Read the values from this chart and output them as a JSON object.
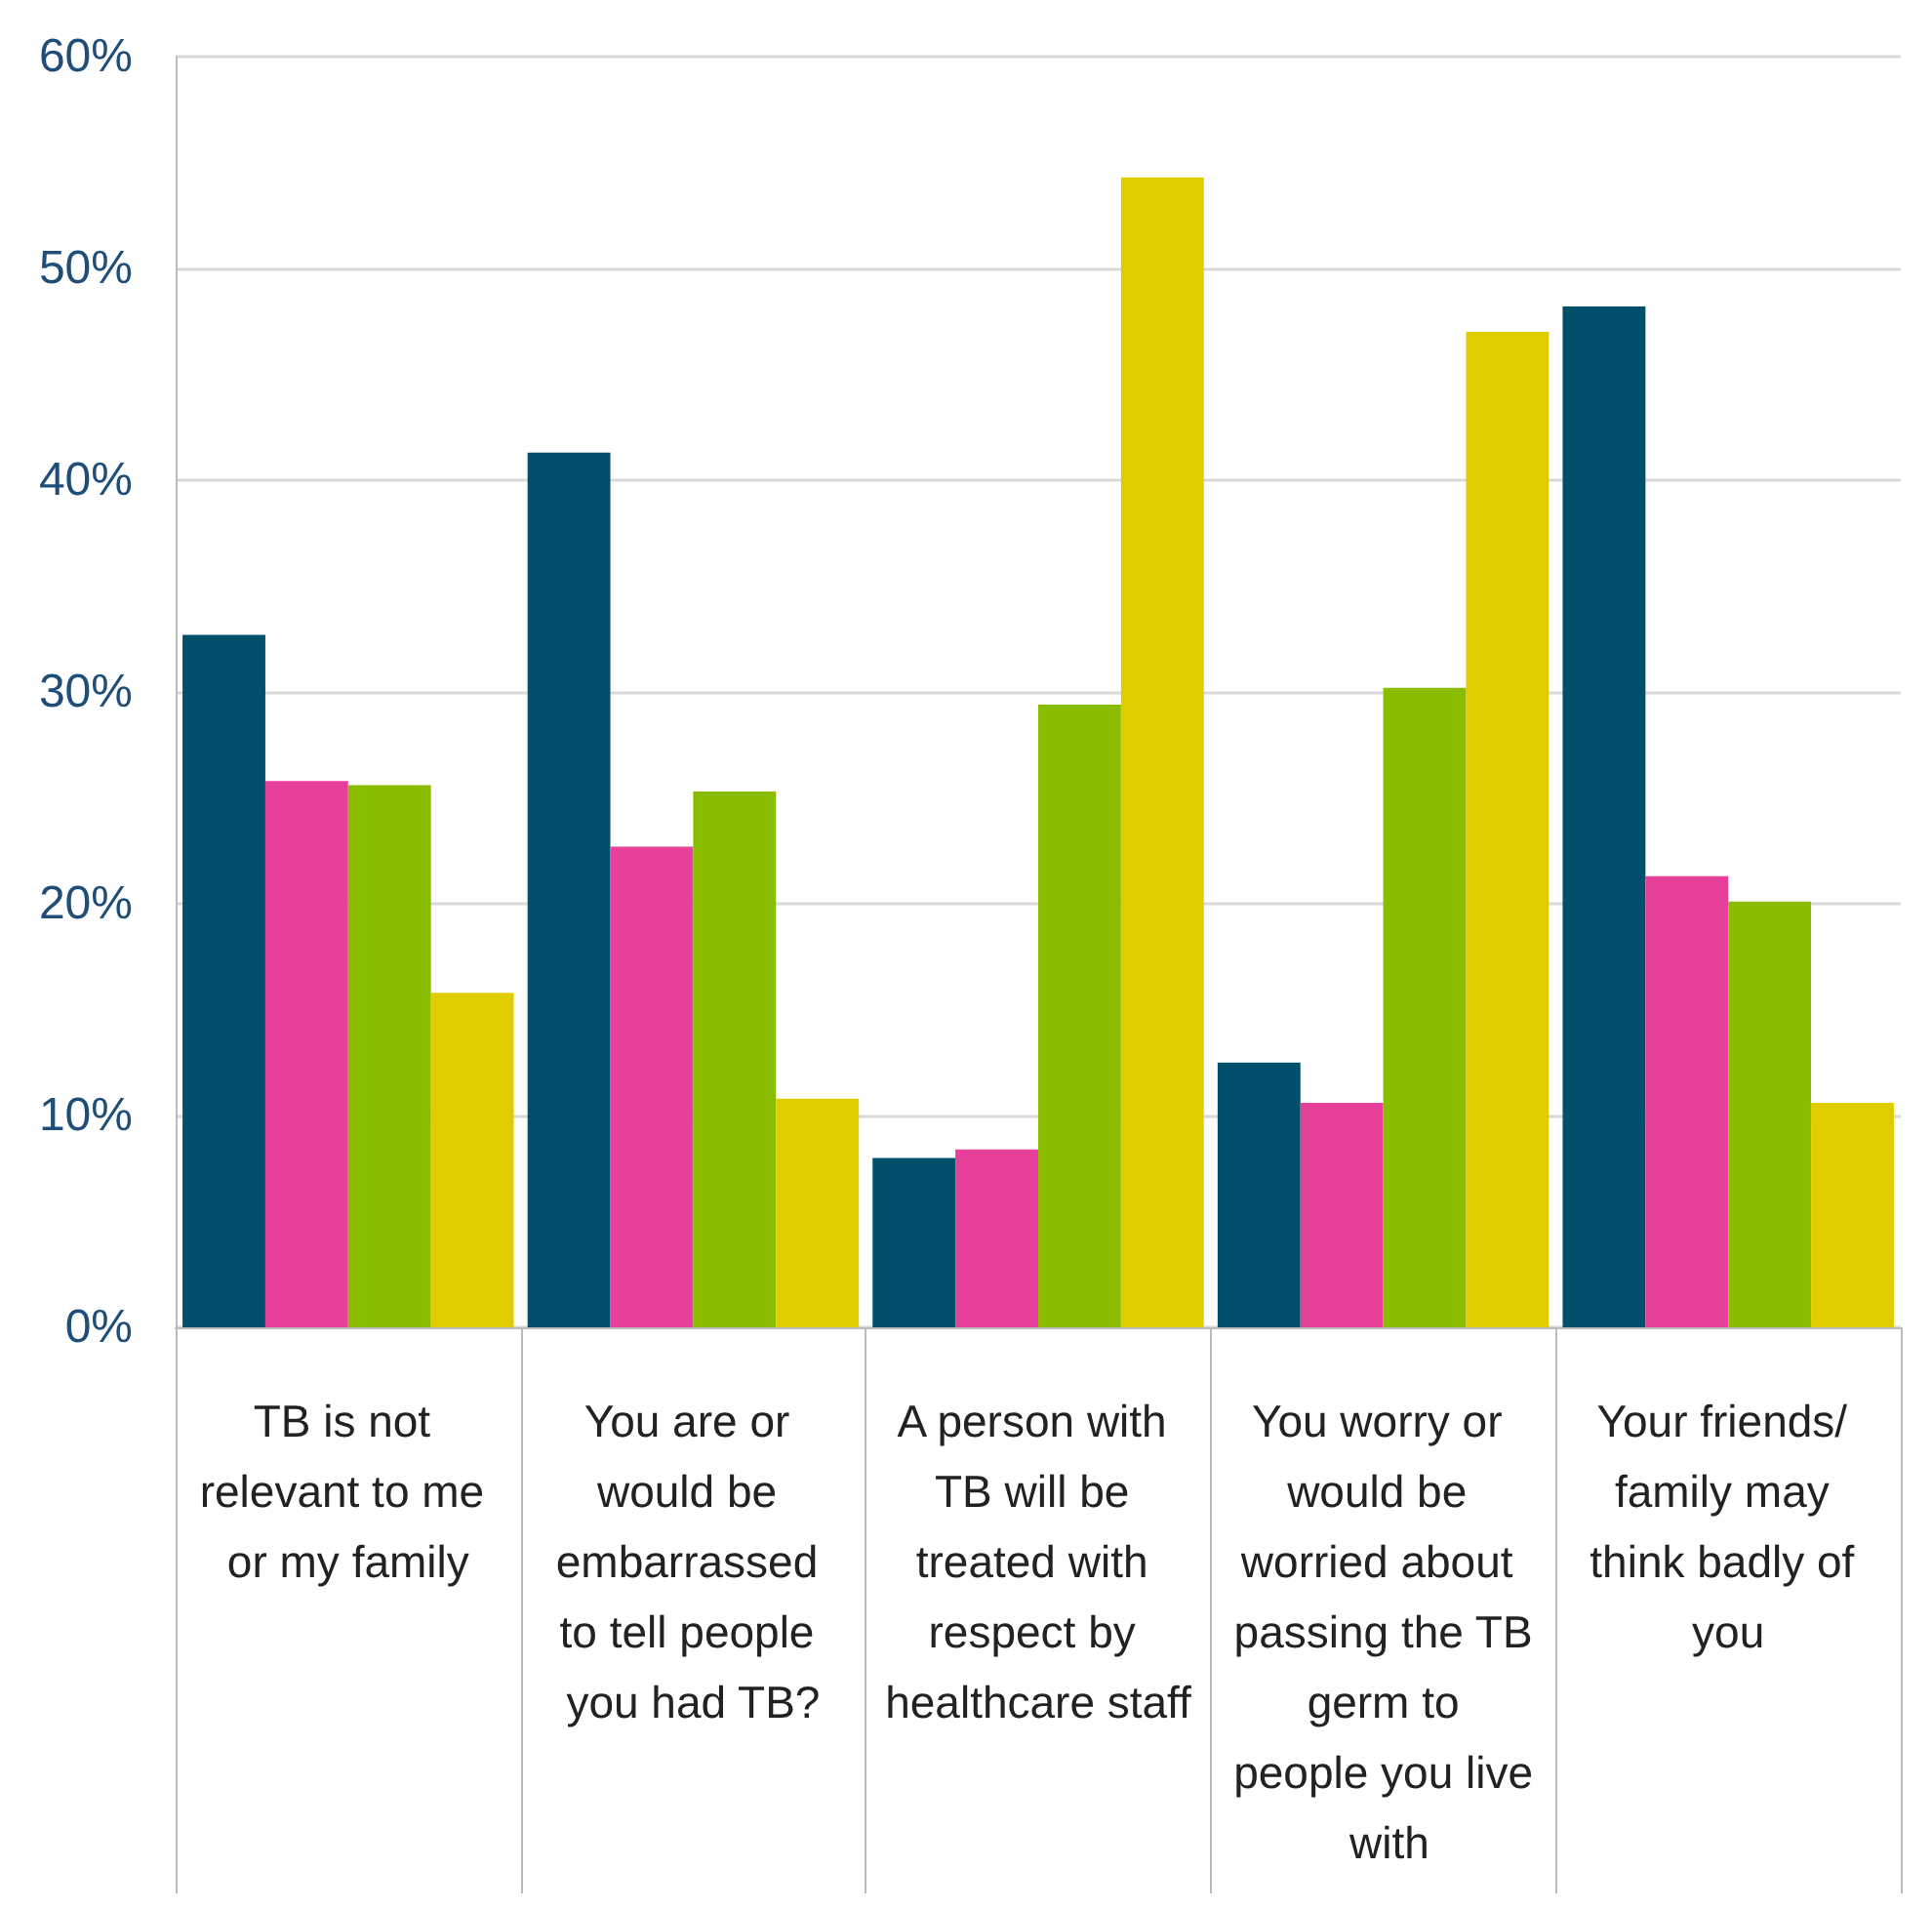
{
  "chart_data": {
    "type": "bar",
    "categories": [
      "TB is not relevant to me or my family",
      "You are or would be embarrassed to tell people you had TB?",
      "A person with TB will be treated with respect by healthcare staff",
      "You worry or would be worried about passing the TB germ to people you live with",
      "Your friends/ family may think badly of you"
    ],
    "series": [
      {
        "color": "#004f6b",
        "values": [
          32.7,
          41.3,
          8.0,
          12.5,
          48.2
        ]
      },
      {
        "color": "#e6409a",
        "values": [
          25.8,
          22.7,
          8.4,
          10.6,
          21.3
        ]
      },
      {
        "color": "#8abd00",
        "values": [
          25.6,
          25.3,
          29.4,
          30.2,
          20.1
        ]
      },
      {
        "color": "#e0cd00",
        "values": [
          15.8,
          10.8,
          54.3,
          47.0,
          10.6
        ]
      }
    ],
    "ylim": [
      0,
      60
    ],
    "yticks": [
      {
        "value": 0,
        "label": "0%"
      },
      {
        "value": 10,
        "label": "10%"
      },
      {
        "value": 20,
        "label": "20%"
      },
      {
        "value": 30,
        "label": "30%"
      },
      {
        "value": 40,
        "label": "40%"
      },
      {
        "value": 50,
        "label": "50%"
      },
      {
        "value": 60,
        "label": "60%"
      }
    ],
    "grid": "y"
  }
}
